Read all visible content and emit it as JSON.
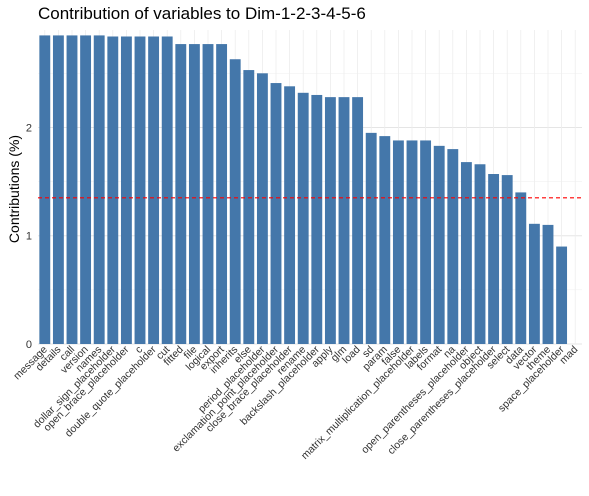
{
  "chart_data": {
    "type": "bar",
    "title": "Contribution of variables to Dim-1-2-3-4-5-6",
    "xlabel": "",
    "ylabel": "Contributions (%)",
    "ylim": [
      0,
      2.9
    ],
    "yticks": [
      0,
      1,
      2
    ],
    "grid": true,
    "bar_color": "#4477AA",
    "reference_line": {
      "value": 1.35,
      "color": "#FF0000",
      "style": "dashed"
    },
    "categories": [
      "message",
      "details",
      "call",
      "version",
      "names",
      "dollar_sign_placeholder",
      "open_brace_placeholder",
      "c",
      "double_quote_placeholder",
      "cut",
      "fitted",
      "file",
      "logical",
      "export",
      "inherits",
      "else",
      "period_placeholder",
      "exclamation_point_placeholder",
      "close_brace_placeholder",
      "rename",
      "backslash_placeholder",
      "apply",
      "glm",
      "load",
      "sd",
      "param",
      "false",
      "matrix_multiplication_placeholder",
      "labels",
      "format",
      "na",
      "open_parentheses_placeholder",
      "object",
      "close_parentheses_placeholder",
      "select",
      "data",
      "vector",
      "theme",
      "space_placeholder",
      "mad"
    ],
    "values": [
      2.85,
      2.85,
      2.85,
      2.85,
      2.85,
      2.84,
      2.84,
      2.84,
      2.84,
      2.84,
      2.77,
      2.77,
      2.77,
      2.77,
      2.63,
      2.53,
      2.5,
      2.41,
      2.38,
      2.32,
      2.3,
      2.28,
      2.28,
      2.28,
      1.95,
      1.92,
      1.88,
      1.88,
      1.88,
      1.83,
      1.8,
      1.68,
      1.66,
      1.57,
      1.56,
      1.4,
      1.11,
      1.1,
      0.9,
      0.0
    ]
  }
}
